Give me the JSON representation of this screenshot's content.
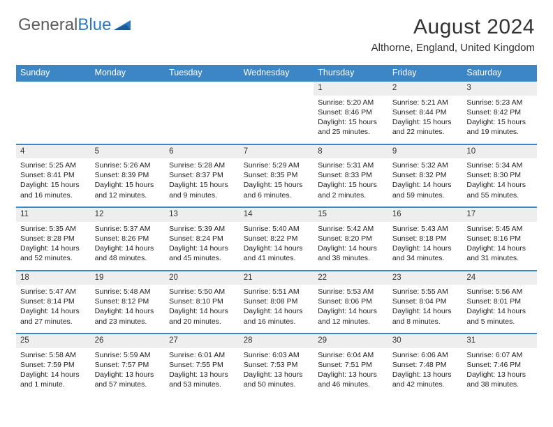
{
  "logo": {
    "text1": "General",
    "text2": "Blue"
  },
  "title": "August 2024",
  "location": "Althorne, England, United Kingdom",
  "colors": {
    "header_bg": "#3d86c6",
    "header_text": "#ffffff",
    "daynum_bg": "#eeeeee",
    "border": "#3d86c6",
    "body_text": "#222222",
    "logo_gray": "#5b5b5b",
    "logo_blue": "#2b78c2"
  },
  "weekdays": [
    "Sunday",
    "Monday",
    "Tuesday",
    "Wednesday",
    "Thursday",
    "Friday",
    "Saturday"
  ],
  "weeks": [
    [
      null,
      null,
      null,
      null,
      {
        "n": "1",
        "sr": "Sunrise: 5:20 AM",
        "ss": "Sunset: 8:46 PM",
        "dl": "Daylight: 15 hours and 25 minutes."
      },
      {
        "n": "2",
        "sr": "Sunrise: 5:21 AM",
        "ss": "Sunset: 8:44 PM",
        "dl": "Daylight: 15 hours and 22 minutes."
      },
      {
        "n": "3",
        "sr": "Sunrise: 5:23 AM",
        "ss": "Sunset: 8:42 PM",
        "dl": "Daylight: 15 hours and 19 minutes."
      }
    ],
    [
      {
        "n": "4",
        "sr": "Sunrise: 5:25 AM",
        "ss": "Sunset: 8:41 PM",
        "dl": "Daylight: 15 hours and 16 minutes."
      },
      {
        "n": "5",
        "sr": "Sunrise: 5:26 AM",
        "ss": "Sunset: 8:39 PM",
        "dl": "Daylight: 15 hours and 12 minutes."
      },
      {
        "n": "6",
        "sr": "Sunrise: 5:28 AM",
        "ss": "Sunset: 8:37 PM",
        "dl": "Daylight: 15 hours and 9 minutes."
      },
      {
        "n": "7",
        "sr": "Sunrise: 5:29 AM",
        "ss": "Sunset: 8:35 PM",
        "dl": "Daylight: 15 hours and 6 minutes."
      },
      {
        "n": "8",
        "sr": "Sunrise: 5:31 AM",
        "ss": "Sunset: 8:33 PM",
        "dl": "Daylight: 15 hours and 2 minutes."
      },
      {
        "n": "9",
        "sr": "Sunrise: 5:32 AM",
        "ss": "Sunset: 8:32 PM",
        "dl": "Daylight: 14 hours and 59 minutes."
      },
      {
        "n": "10",
        "sr": "Sunrise: 5:34 AM",
        "ss": "Sunset: 8:30 PM",
        "dl": "Daylight: 14 hours and 55 minutes."
      }
    ],
    [
      {
        "n": "11",
        "sr": "Sunrise: 5:35 AM",
        "ss": "Sunset: 8:28 PM",
        "dl": "Daylight: 14 hours and 52 minutes."
      },
      {
        "n": "12",
        "sr": "Sunrise: 5:37 AM",
        "ss": "Sunset: 8:26 PM",
        "dl": "Daylight: 14 hours and 48 minutes."
      },
      {
        "n": "13",
        "sr": "Sunrise: 5:39 AM",
        "ss": "Sunset: 8:24 PM",
        "dl": "Daylight: 14 hours and 45 minutes."
      },
      {
        "n": "14",
        "sr": "Sunrise: 5:40 AM",
        "ss": "Sunset: 8:22 PM",
        "dl": "Daylight: 14 hours and 41 minutes."
      },
      {
        "n": "15",
        "sr": "Sunrise: 5:42 AM",
        "ss": "Sunset: 8:20 PM",
        "dl": "Daylight: 14 hours and 38 minutes."
      },
      {
        "n": "16",
        "sr": "Sunrise: 5:43 AM",
        "ss": "Sunset: 8:18 PM",
        "dl": "Daylight: 14 hours and 34 minutes."
      },
      {
        "n": "17",
        "sr": "Sunrise: 5:45 AM",
        "ss": "Sunset: 8:16 PM",
        "dl": "Daylight: 14 hours and 31 minutes."
      }
    ],
    [
      {
        "n": "18",
        "sr": "Sunrise: 5:47 AM",
        "ss": "Sunset: 8:14 PM",
        "dl": "Daylight: 14 hours and 27 minutes."
      },
      {
        "n": "19",
        "sr": "Sunrise: 5:48 AM",
        "ss": "Sunset: 8:12 PM",
        "dl": "Daylight: 14 hours and 23 minutes."
      },
      {
        "n": "20",
        "sr": "Sunrise: 5:50 AM",
        "ss": "Sunset: 8:10 PM",
        "dl": "Daylight: 14 hours and 20 minutes."
      },
      {
        "n": "21",
        "sr": "Sunrise: 5:51 AM",
        "ss": "Sunset: 8:08 PM",
        "dl": "Daylight: 14 hours and 16 minutes."
      },
      {
        "n": "22",
        "sr": "Sunrise: 5:53 AM",
        "ss": "Sunset: 8:06 PM",
        "dl": "Daylight: 14 hours and 12 minutes."
      },
      {
        "n": "23",
        "sr": "Sunrise: 5:55 AM",
        "ss": "Sunset: 8:04 PM",
        "dl": "Daylight: 14 hours and 8 minutes."
      },
      {
        "n": "24",
        "sr": "Sunrise: 5:56 AM",
        "ss": "Sunset: 8:01 PM",
        "dl": "Daylight: 14 hours and 5 minutes."
      }
    ],
    [
      {
        "n": "25",
        "sr": "Sunrise: 5:58 AM",
        "ss": "Sunset: 7:59 PM",
        "dl": "Daylight: 14 hours and 1 minute."
      },
      {
        "n": "26",
        "sr": "Sunrise: 5:59 AM",
        "ss": "Sunset: 7:57 PM",
        "dl": "Daylight: 13 hours and 57 minutes."
      },
      {
        "n": "27",
        "sr": "Sunrise: 6:01 AM",
        "ss": "Sunset: 7:55 PM",
        "dl": "Daylight: 13 hours and 53 minutes."
      },
      {
        "n": "28",
        "sr": "Sunrise: 6:03 AM",
        "ss": "Sunset: 7:53 PM",
        "dl": "Daylight: 13 hours and 50 minutes."
      },
      {
        "n": "29",
        "sr": "Sunrise: 6:04 AM",
        "ss": "Sunset: 7:51 PM",
        "dl": "Daylight: 13 hours and 46 minutes."
      },
      {
        "n": "30",
        "sr": "Sunrise: 6:06 AM",
        "ss": "Sunset: 7:48 PM",
        "dl": "Daylight: 13 hours and 42 minutes."
      },
      {
        "n": "31",
        "sr": "Sunrise: 6:07 AM",
        "ss": "Sunset: 7:46 PM",
        "dl": "Daylight: 13 hours and 38 minutes."
      }
    ]
  ]
}
